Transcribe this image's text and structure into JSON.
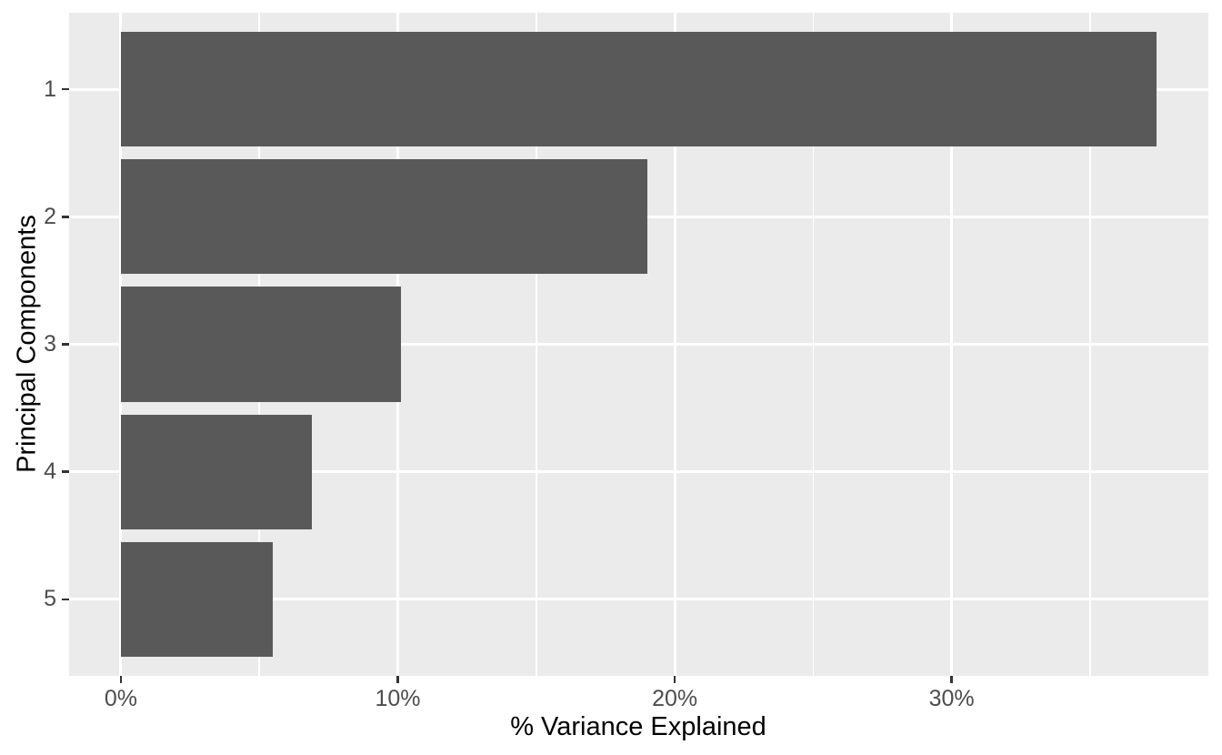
{
  "chart_data": {
    "type": "bar",
    "orientation": "horizontal",
    "title": "",
    "xlabel": "% Variance Explained",
    "ylabel": "Principal Components",
    "categories": [
      "1",
      "2",
      "3",
      "4",
      "5"
    ],
    "values": [
      37.4,
      19.0,
      10.1,
      6.9,
      5.5
    ],
    "value_unit": "%",
    "x_major_ticks": [
      0,
      10,
      20,
      30
    ],
    "x_major_tick_labels": [
      "0%",
      "10%",
      "20%",
      "30%"
    ],
    "x_minor_ticks": [
      5,
      15,
      25,
      35
    ],
    "xlim": [
      -1.87,
      39.27
    ],
    "category_domain": [
      0.4,
      5.6
    ],
    "bar_band_width": 0.9,
    "grid": "white major and minor vertical gridlines, white major horizontal gridlines",
    "legend": "none",
    "colors": {
      "bar_fill": "#595959",
      "panel_background": "#EBEBEB",
      "grid_line": "#FFFFFF",
      "tick_label": "#4D4D4D",
      "tick_mark": "#333333",
      "axis_title": "#000000",
      "page_background": "#FFFFFF"
    }
  }
}
